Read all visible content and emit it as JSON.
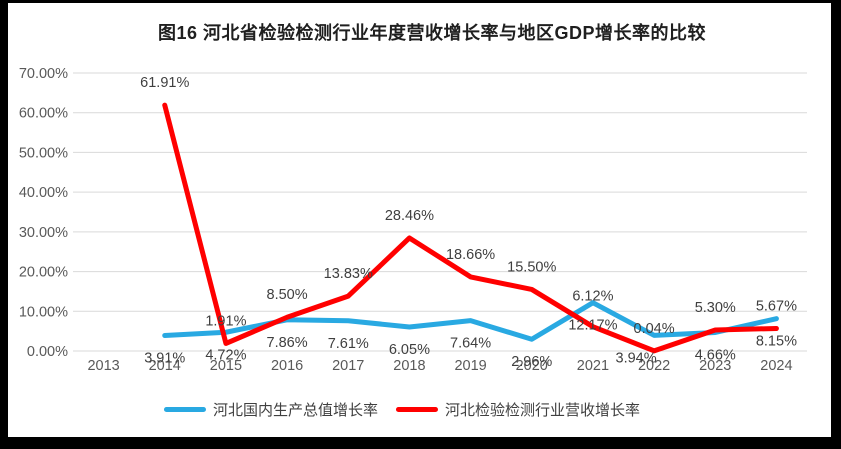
{
  "title": "图16 河北省检验检测行业年度营收增长率与地区GDP增长率的比较",
  "chart_data": {
    "type": "line",
    "title": "图16 河北省检验检测行业年度营收增长率与地区GDP增长率的比较",
    "categories": [
      "2013",
      "2014",
      "2015",
      "2016",
      "2017",
      "2018",
      "2019",
      "2020",
      "2021",
      "2022",
      "2023",
      "2024"
    ],
    "series": [
      {
        "name": "河北国内生产总值增长率",
        "color": "#29A9E2",
        "label_position": "below",
        "values": [
          null,
          3.91,
          4.72,
          7.86,
          7.61,
          6.05,
          7.64,
          2.96,
          12.17,
          3.94,
          4.66,
          8.15
        ],
        "labels": [
          null,
          "3.91%",
          "4.72%",
          "7.86%",
          "7.61%",
          "6.05%",
          "7.64%",
          "2.96%",
          "12.17%",
          "3.94%",
          "4.66%",
          "8.15%"
        ]
      },
      {
        "name": "河北检验检测行业营收增长率",
        "color": "#FF0000",
        "label_position": "above",
        "values": [
          null,
          61.91,
          1.91,
          8.5,
          13.83,
          28.46,
          18.66,
          15.5,
          6.12,
          0.04,
          5.3,
          5.67
        ],
        "labels": [
          null,
          "61.91%",
          "1.91%",
          "8.50%",
          "13.83%",
          "28.46%",
          "18.66%",
          "15.50%",
          "6.12%",
          "0.04%",
          "5.30%",
          "5.67%"
        ]
      }
    ],
    "y_axis": {
      "min": 0,
      "max": 70,
      "step": 10,
      "tick_labels": [
        "0.00%",
        "10.00%",
        "20.00%",
        "30.00%",
        "40.00%",
        "50.00%",
        "60.00%",
        "70.00%"
      ]
    },
    "x_axis": {
      "tick_labels": [
        "2013",
        "2014",
        "2015",
        "2016",
        "2017",
        "2018",
        "2019",
        "2020",
        "2021",
        "2022",
        "2023",
        "2024"
      ]
    },
    "grid": "horizontal-only",
    "legend_position": "bottom",
    "colors": {
      "gridline": "#D9D9D9",
      "axis_text": "#595959",
      "data_label_text": "#3F3F3F",
      "title_text": "#1F1F1F",
      "background": "#FFFFFF",
      "frame": "#000000"
    }
  }
}
